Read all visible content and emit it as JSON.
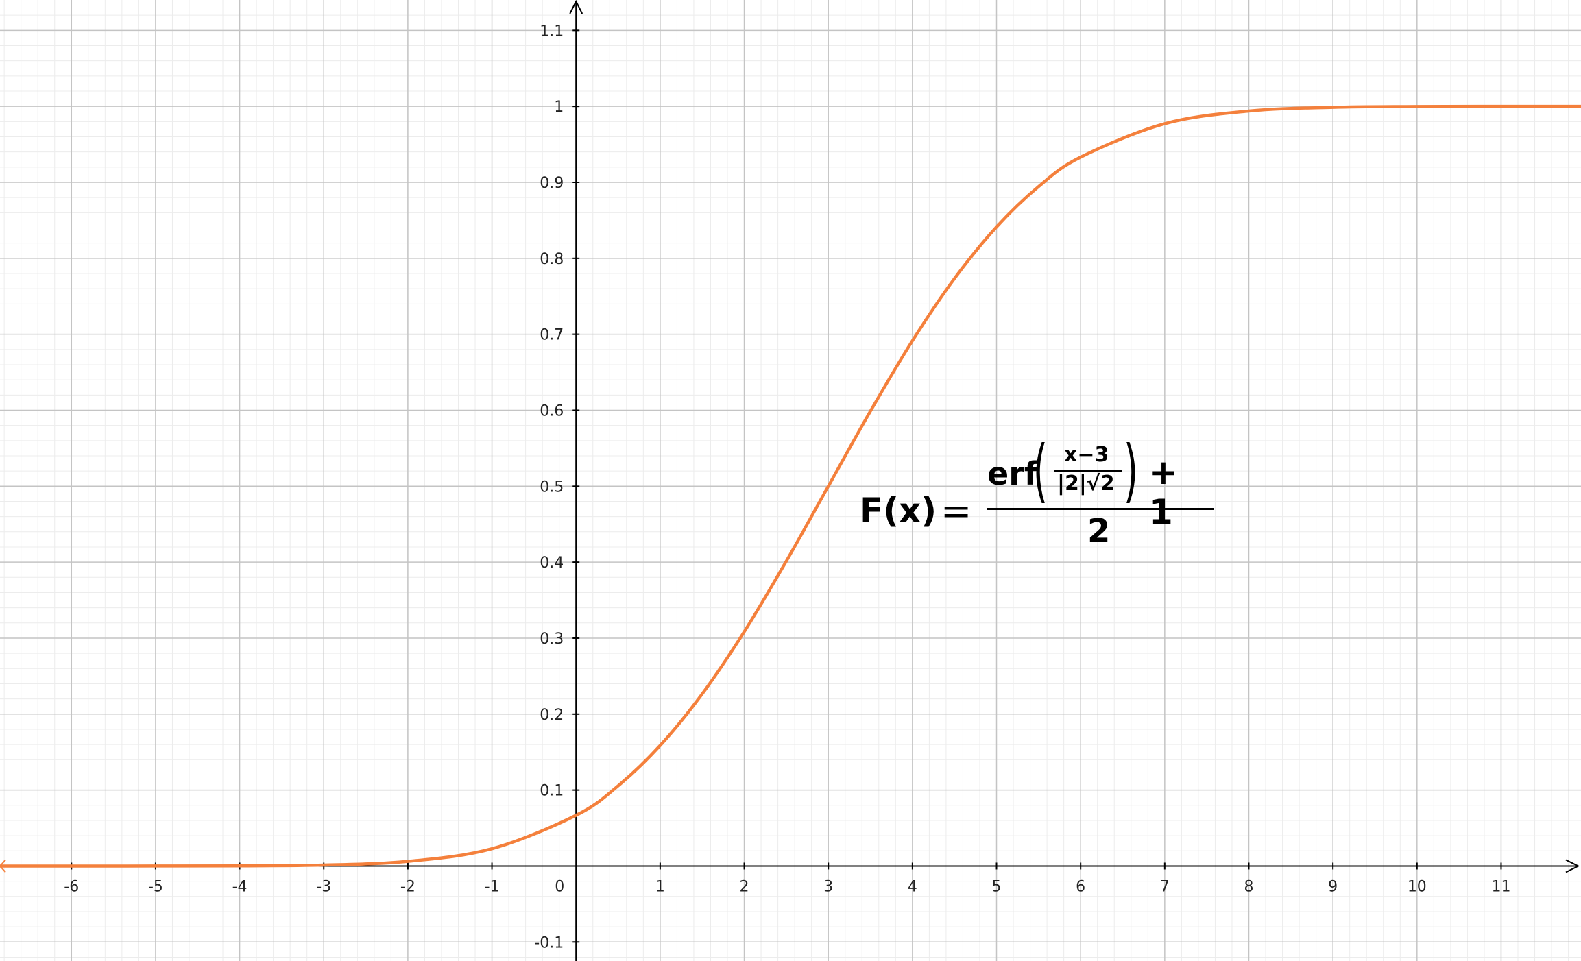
{
  "chart_data": {
    "type": "line",
    "title": "",
    "xlabel": "",
    "ylabel": "",
    "xlim": [
      -6.85,
      11.95
    ],
    "ylim": [
      -0.125,
      1.14
    ],
    "grid": true,
    "x_ticks": [
      -6,
      -5,
      -4,
      -3,
      -2,
      -1,
      0,
      1,
      2,
      3,
      4,
      5,
      6,
      7,
      8,
      9,
      10,
      11
    ],
    "x_tick_labels": [
      "-6",
      "-5",
      "-4",
      "-3",
      "-2",
      "-1",
      "0",
      "1",
      "2",
      "3",
      "4",
      "5",
      "6",
      "7",
      "8",
      "9",
      "10",
      "11"
    ],
    "y_ticks": [
      -0.1,
      0.1,
      0.2,
      0.3,
      0.4,
      0.5,
      0.6,
      0.7,
      0.8,
      0.9,
      1,
      1.1
    ],
    "y_tick_labels": [
      "-0.1",
      "0.1",
      "0.2",
      "0.3",
      "0.4",
      "0.5",
      "0.6",
      "0.7",
      "0.8",
      "0.9",
      "1",
      "1.1"
    ],
    "series": [
      {
        "color": "#f4803c",
        "x": [
          -6.85,
          -6,
          -5,
          -4,
          -3,
          -2,
          -1,
          0,
          0.5,
          1,
          1.5,
          2,
          2.5,
          3,
          3.5,
          4,
          4.5,
          5,
          5.5,
          6,
          7,
          8,
          9,
          10,
          11,
          11.95
        ],
        "y": [
          0,
          1e-05,
          3e-05,
          0.0002,
          0.0013,
          0.0062,
          0.0228,
          0.0668,
          0.1056,
          0.1587,
          0.2266,
          0.3085,
          0.4013,
          0.5,
          0.5987,
          0.6915,
          0.7734,
          0.8413,
          0.8944,
          0.9332,
          0.9772,
          0.9938,
          0.9987,
          0.9998,
          1,
          1
        ]
      }
    ],
    "annotations": [
      {
        "lhs": "F(x)",
        "equals": "=",
        "erf": "erf",
        "paren_open": "(",
        "inner_numerator": "x−3",
        "inner_denominator": "|2|√2",
        "paren_close": ")",
        "plus_one": "+ 1",
        "denominator": "2"
      }
    ]
  },
  "colors": {
    "curve": "#f4803c",
    "major_grid": "#c4c4c4",
    "minor_grid": "#ececec",
    "axis": "#000000"
  }
}
